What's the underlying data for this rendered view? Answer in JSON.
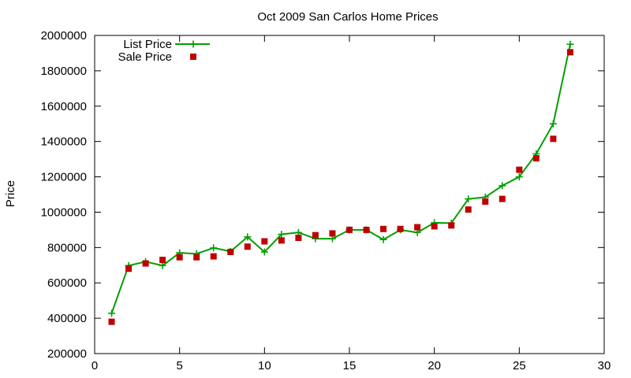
{
  "chart_data": {
    "type": "line",
    "title": "Oct 2009 San Carlos Home Prices",
    "xlabel": "",
    "ylabel": "Price",
    "xlim": [
      0,
      30
    ],
    "ylim": [
      200000,
      2000000
    ],
    "x_ticks": [
      0,
      5,
      10,
      15,
      20,
      25,
      30
    ],
    "y_ticks": [
      200000,
      400000,
      600000,
      800000,
      1000000,
      1200000,
      1400000,
      1600000,
      1800000,
      2000000
    ],
    "grid": false,
    "legend_position": "top-left",
    "series": [
      {
        "name": "List Price",
        "style": "line-with-plus-markers",
        "color": "#00a000",
        "x": [
          1,
          2,
          3,
          4,
          5,
          6,
          7,
          8,
          9,
          10,
          11,
          12,
          13,
          14,
          15,
          16,
          17,
          18,
          19,
          20,
          21,
          22,
          23,
          24,
          25,
          26,
          27,
          28
        ],
        "values": [
          428000,
          698000,
          720000,
          698000,
          770000,
          765000,
          798000,
          778000,
          860000,
          775000,
          875000,
          885000,
          850000,
          850000,
          900000,
          900000,
          845000,
          900000,
          885000,
          940000,
          938000,
          1075000,
          1085000,
          1150000,
          1200000,
          1330000,
          1500000,
          1950000
        ]
      },
      {
        "name": "Sale Price",
        "style": "square-markers",
        "color": "#c00000",
        "x": [
          1,
          2,
          3,
          4,
          5,
          6,
          7,
          8,
          9,
          10,
          11,
          12,
          13,
          14,
          15,
          16,
          17,
          18,
          19,
          20,
          21,
          22,
          23,
          24,
          25,
          26,
          27,
          28
        ],
        "values": [
          380000,
          680000,
          710000,
          730000,
          745000,
          745000,
          750000,
          775000,
          805000,
          835000,
          840000,
          855000,
          870000,
          880000,
          900000,
          900000,
          905000,
          905000,
          915000,
          920000,
          925000,
          1015000,
          1060000,
          1075000,
          1240000,
          1305000,
          1415000,
          1905000
        ]
      }
    ]
  }
}
